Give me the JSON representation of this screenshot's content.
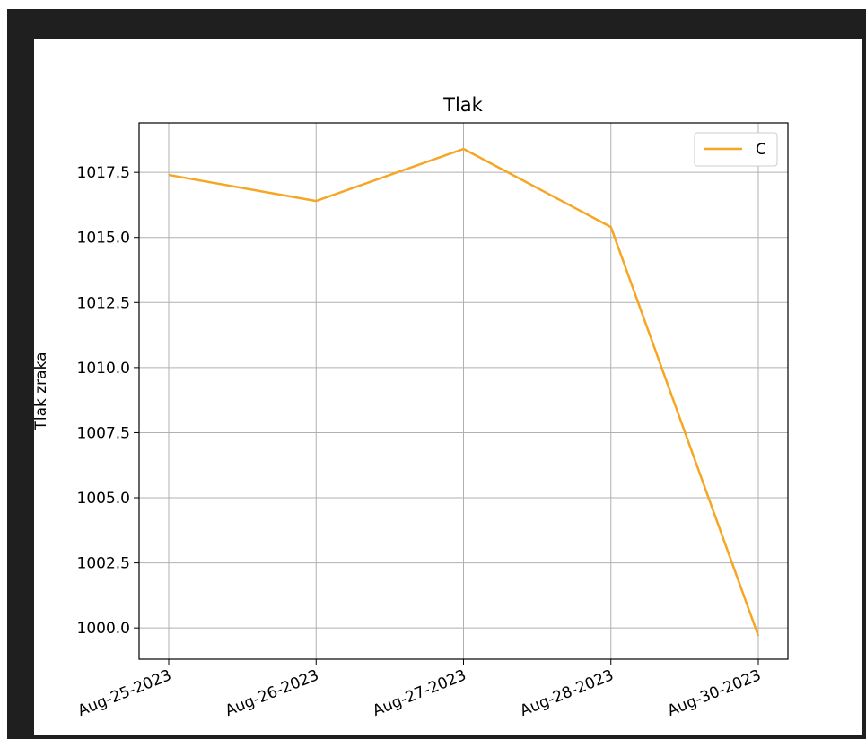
{
  "chart_data": {
    "type": "line",
    "title": "Tlak",
    "xlabel": "",
    "ylabel": "Tlak zraka",
    "categories": [
      "Aug-25-2023",
      "Aug-26-2023",
      "Aug-27-2023",
      "Aug-28-2023",
      "Aug-30-2023"
    ],
    "series": [
      {
        "name": "C",
        "color": "#f5a623",
        "values": [
          1017.4,
          1016.4,
          1018.4,
          1015.4,
          999.7
        ]
      }
    ],
    "yticks": [
      "1000.0",
      "1002.5",
      "1005.0",
      "1007.5",
      "1010.0",
      "1012.5",
      "1015.0",
      "1017.5"
    ],
    "ytick_values": [
      1000.0,
      1002.5,
      1005.0,
      1007.5,
      1010.0,
      1012.5,
      1015.0,
      1017.5
    ],
    "ylim": [
      998.8,
      1019.4
    ],
    "grid": true,
    "legend_position": "top-right"
  }
}
